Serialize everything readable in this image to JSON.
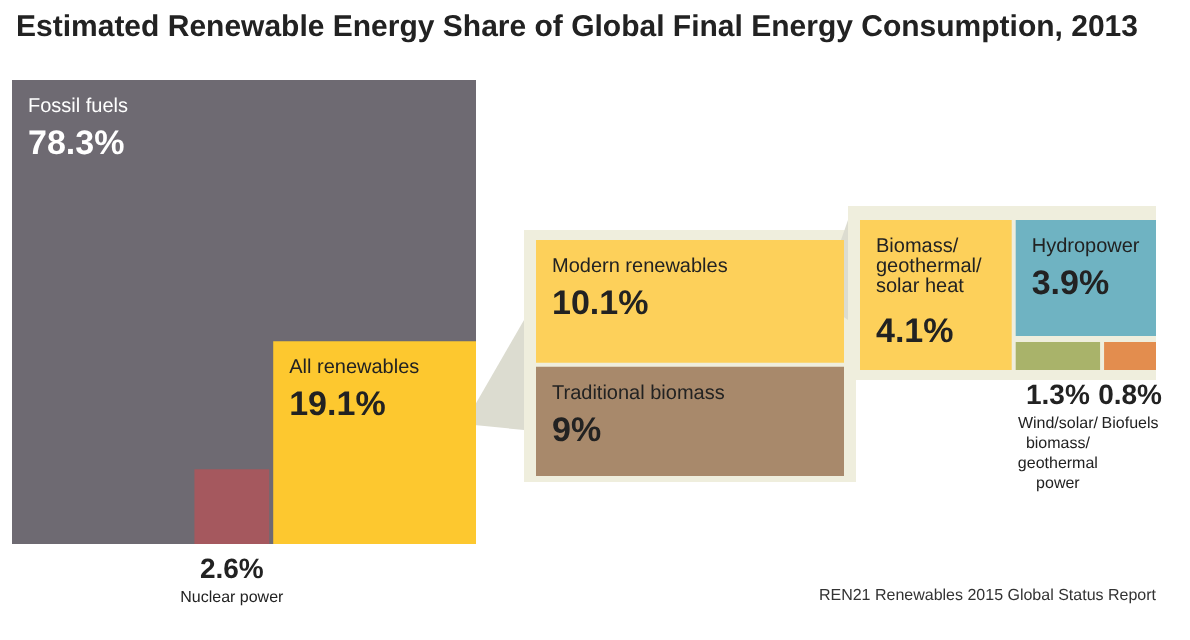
{
  "chart_data": {
    "type": "other",
    "title": "Estimated Renewable Energy Share of Global Final Energy Consumption, 2013",
    "categories": [
      "Fossil fuels",
      "All renewables",
      "Nuclear power",
      "Modern renewables",
      "Traditional biomass",
      "Biomass/\ngeothermal/\nsolar heat",
      "Hydropower",
      "Wind/solar/\nbiomass/\ngeothermal\npower",
      "Biofuels"
    ],
    "values": [
      78.3,
      19.1,
      2.6,
      10.1,
      9,
      4.1,
      3.9,
      1.3,
      0.8
    ],
    "value_labels": [
      "78.3%",
      "19.1%",
      "2.6%",
      "10.1%",
      "9%",
      "4.1%",
      "3.9%",
      "1.3%",
      "0.8%"
    ],
    "colors": [
      "#6e6a72",
      "#fdc82f",
      "#a5585e",
      "#fdd05a",
      "#a8896b",
      "#fdd05a",
      "#6fb3c2",
      "#a9b36a",
      "#e38d4e"
    ],
    "annotations": [
      "REN21 Renewables 2015 Global Status Report"
    ]
  }
}
